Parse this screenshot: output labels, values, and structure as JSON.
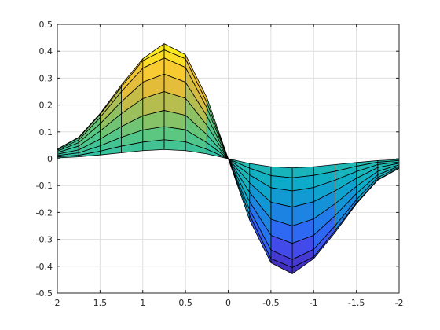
{
  "chart_data": {
    "type": "surface",
    "title": "",
    "xlabel": "",
    "ylabel": "",
    "x_reversed": true,
    "xlim": [
      -2,
      2
    ],
    "ylim": [
      -0.5,
      0.5
    ],
    "grid": true,
    "colormap": "parula",
    "x_ticks": [
      2,
      1.5,
      1,
      0.5,
      0,
      -0.5,
      -1,
      -1.5,
      -2
    ],
    "x_tick_labels": [
      "2",
      "1.5",
      "1",
      "0.5",
      "0",
      "-0.5",
      "-1",
      "-1.5",
      "-2"
    ],
    "y_ticks": [
      0.5,
      0.4,
      0.3,
      0.2,
      0.1,
      0,
      -0.1,
      -0.2,
      -0.3,
      -0.4,
      -0.5
    ],
    "y_tick_labels": [
      "0.5",
      "0.4",
      "0.3",
      "0.2",
      "0.1",
      "0",
      "-0.1",
      "-0.2",
      "-0.3",
      "-0.4",
      "-0.5"
    ],
    "x": [
      -2,
      -1.75,
      -1.5,
      -1.25,
      -1,
      -0.75,
      -0.5,
      -0.25,
      0,
      0.25,
      0.5,
      0.75,
      1,
      1.25,
      1.5,
      1.75,
      2
    ],
    "series": [
      {
        "values": [
          -0.003,
          -0.007,
          -0.014,
          -0.022,
          -0.03,
          -0.034,
          -0.03,
          -0.018,
          0,
          0.018,
          0.03,
          0.034,
          0.03,
          0.022,
          0.014,
          0.007,
          0.003
        ]
      },
      {
        "values": [
          -0.007,
          -0.013,
          -0.028,
          -0.047,
          -0.062,
          -0.071,
          -0.063,
          -0.035,
          0,
          0.035,
          0.063,
          0.071,
          0.062,
          0.047,
          0.028,
          0.013,
          0.007
        ]
      },
      {
        "values": [
          -0.012,
          -0.022,
          -0.048,
          -0.08,
          -0.107,
          -0.12,
          -0.108,
          -0.06,
          0,
          0.06,
          0.108,
          0.12,
          0.107,
          0.08,
          0.048,
          0.022,
          0.012
        ]
      },
      {
        "values": [
          -0.017,
          -0.033,
          -0.073,
          -0.12,
          -0.16,
          -0.18,
          -0.162,
          -0.09,
          0,
          0.09,
          0.162,
          0.18,
          0.16,
          0.12,
          0.073,
          0.033,
          0.017
        ]
      },
      {
        "values": [
          -0.023,
          -0.047,
          -0.103,
          -0.168,
          -0.224,
          -0.25,
          -0.225,
          -0.125,
          0,
          0.125,
          0.225,
          0.25,
          0.224,
          0.168,
          0.103,
          0.047,
          0.023
        ]
      },
      {
        "values": [
          -0.028,
          -0.06,
          -0.13,
          -0.212,
          -0.285,
          -0.315,
          -0.285,
          -0.16,
          0,
          0.16,
          0.285,
          0.315,
          0.285,
          0.212,
          0.13,
          0.06,
          0.028
        ]
      },
      {
        "values": [
          -0.032,
          -0.07,
          -0.153,
          -0.25,
          -0.337,
          -0.375,
          -0.34,
          -0.19,
          0,
          0.19,
          0.34,
          0.375,
          0.337,
          0.25,
          0.153,
          0.07,
          0.032
        ]
      },
      {
        "values": [
          -0.035,
          -0.078,
          -0.165,
          -0.268,
          -0.365,
          -0.405,
          -0.372,
          -0.21,
          0,
          0.21,
          0.372,
          0.405,
          0.365,
          0.268,
          0.165,
          0.078,
          0.035
        ]
      },
      {
        "values": [
          -0.036,
          -0.08,
          -0.168,
          -0.275,
          -0.372,
          -0.428,
          -0.387,
          -0.228,
          0,
          0.228,
          0.387,
          0.428,
          0.372,
          0.275,
          0.168,
          0.08,
          0.036
        ]
      }
    ]
  }
}
